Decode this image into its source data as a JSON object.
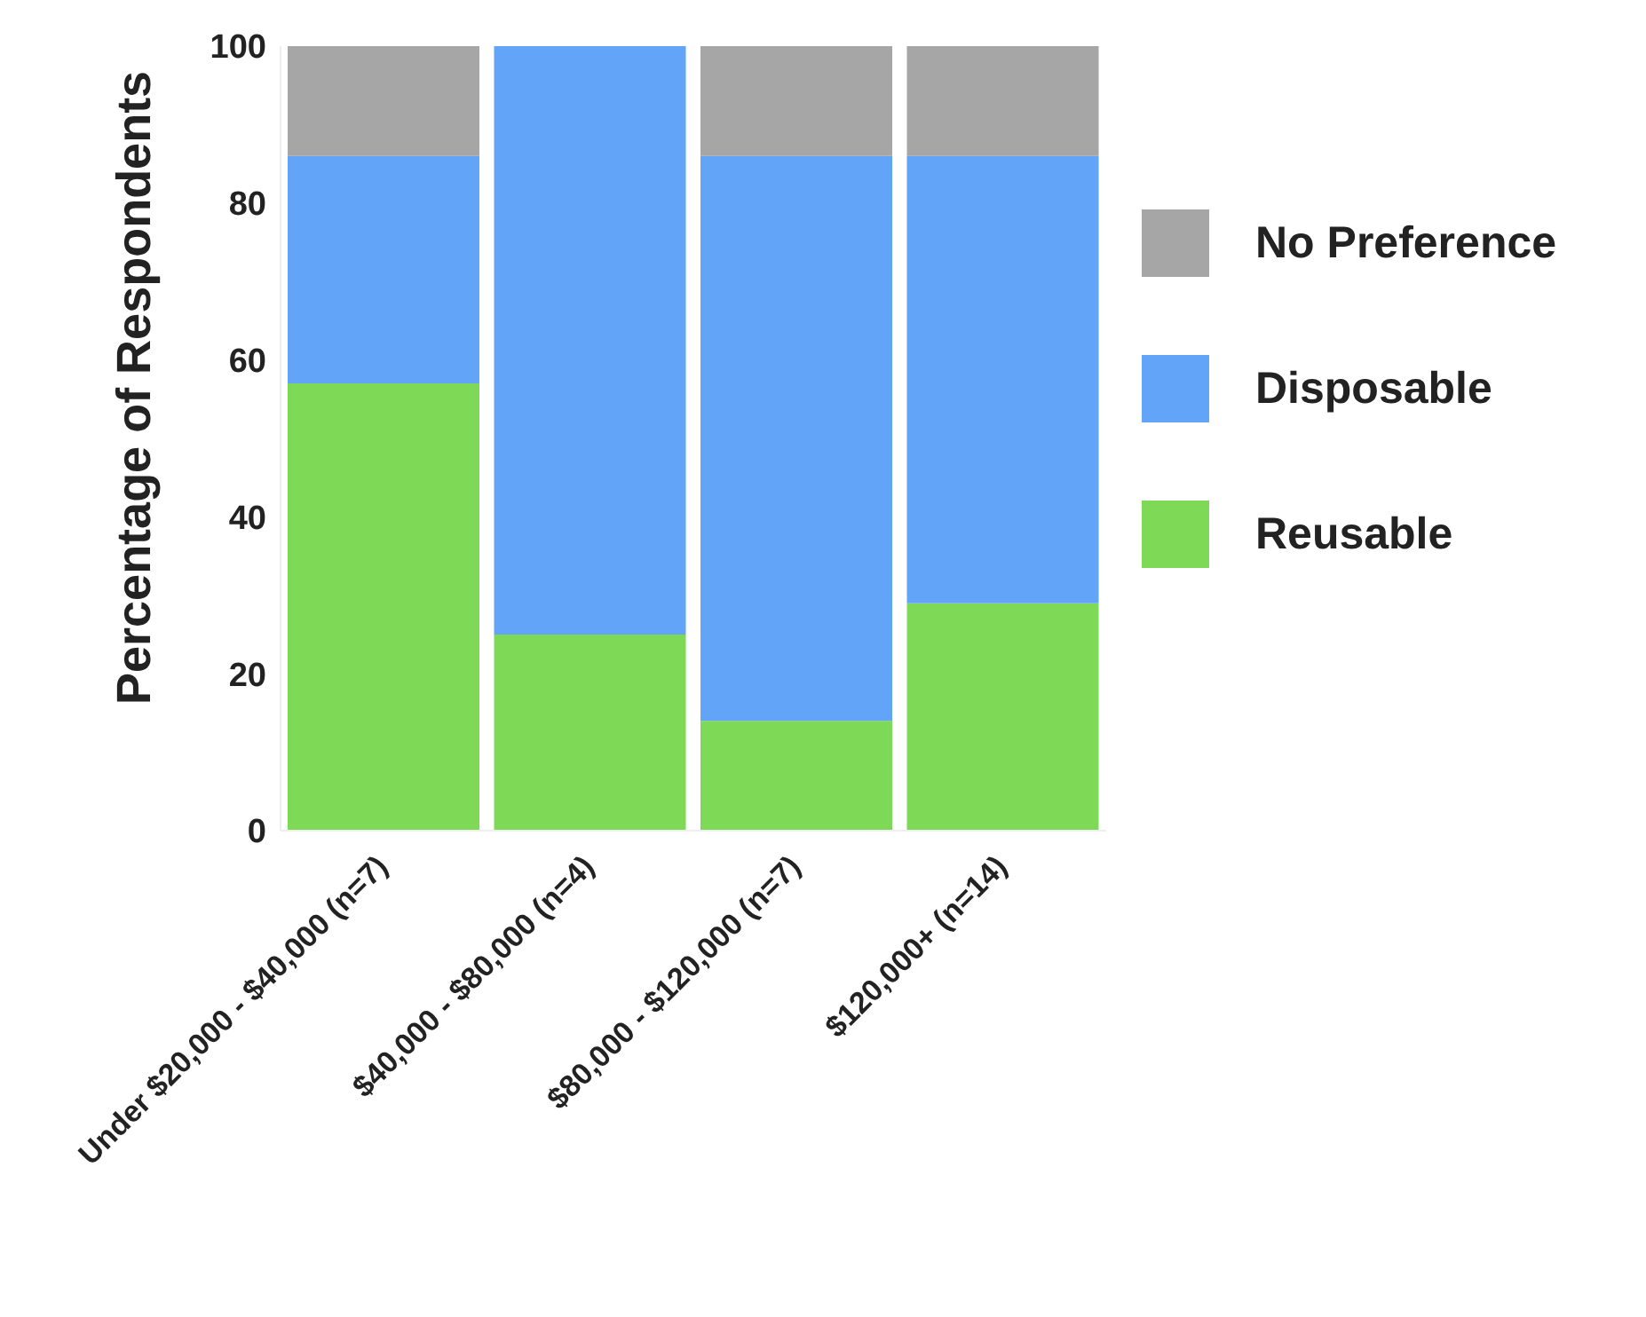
{
  "chart_data": {
    "type": "bar",
    "stacked": true,
    "ylabel": "Percentage of Respondents",
    "categories": [
      "Under $20,000 - $40,000 (n=7)",
      "$40,000 - $80,000 (n=4)",
      "$80,000 - $120,000 (n=7)",
      "$120,000+ (n=14)"
    ],
    "series": [
      {
        "name": "Reusable",
        "color": "#7ed957",
        "values": [
          57,
          25,
          14,
          29
        ]
      },
      {
        "name": "Disposable",
        "color": "#62a4f8",
        "values": [
          29,
          75,
          72,
          57
        ]
      },
      {
        "name": "No Preference",
        "color": "#a6a6a6",
        "values": [
          14,
          0,
          14,
          14
        ]
      }
    ],
    "ylim": [
      0,
      100
    ],
    "yticks": [
      0,
      20,
      40,
      60,
      80,
      100
    ],
    "grid": false,
    "legend": "right"
  }
}
